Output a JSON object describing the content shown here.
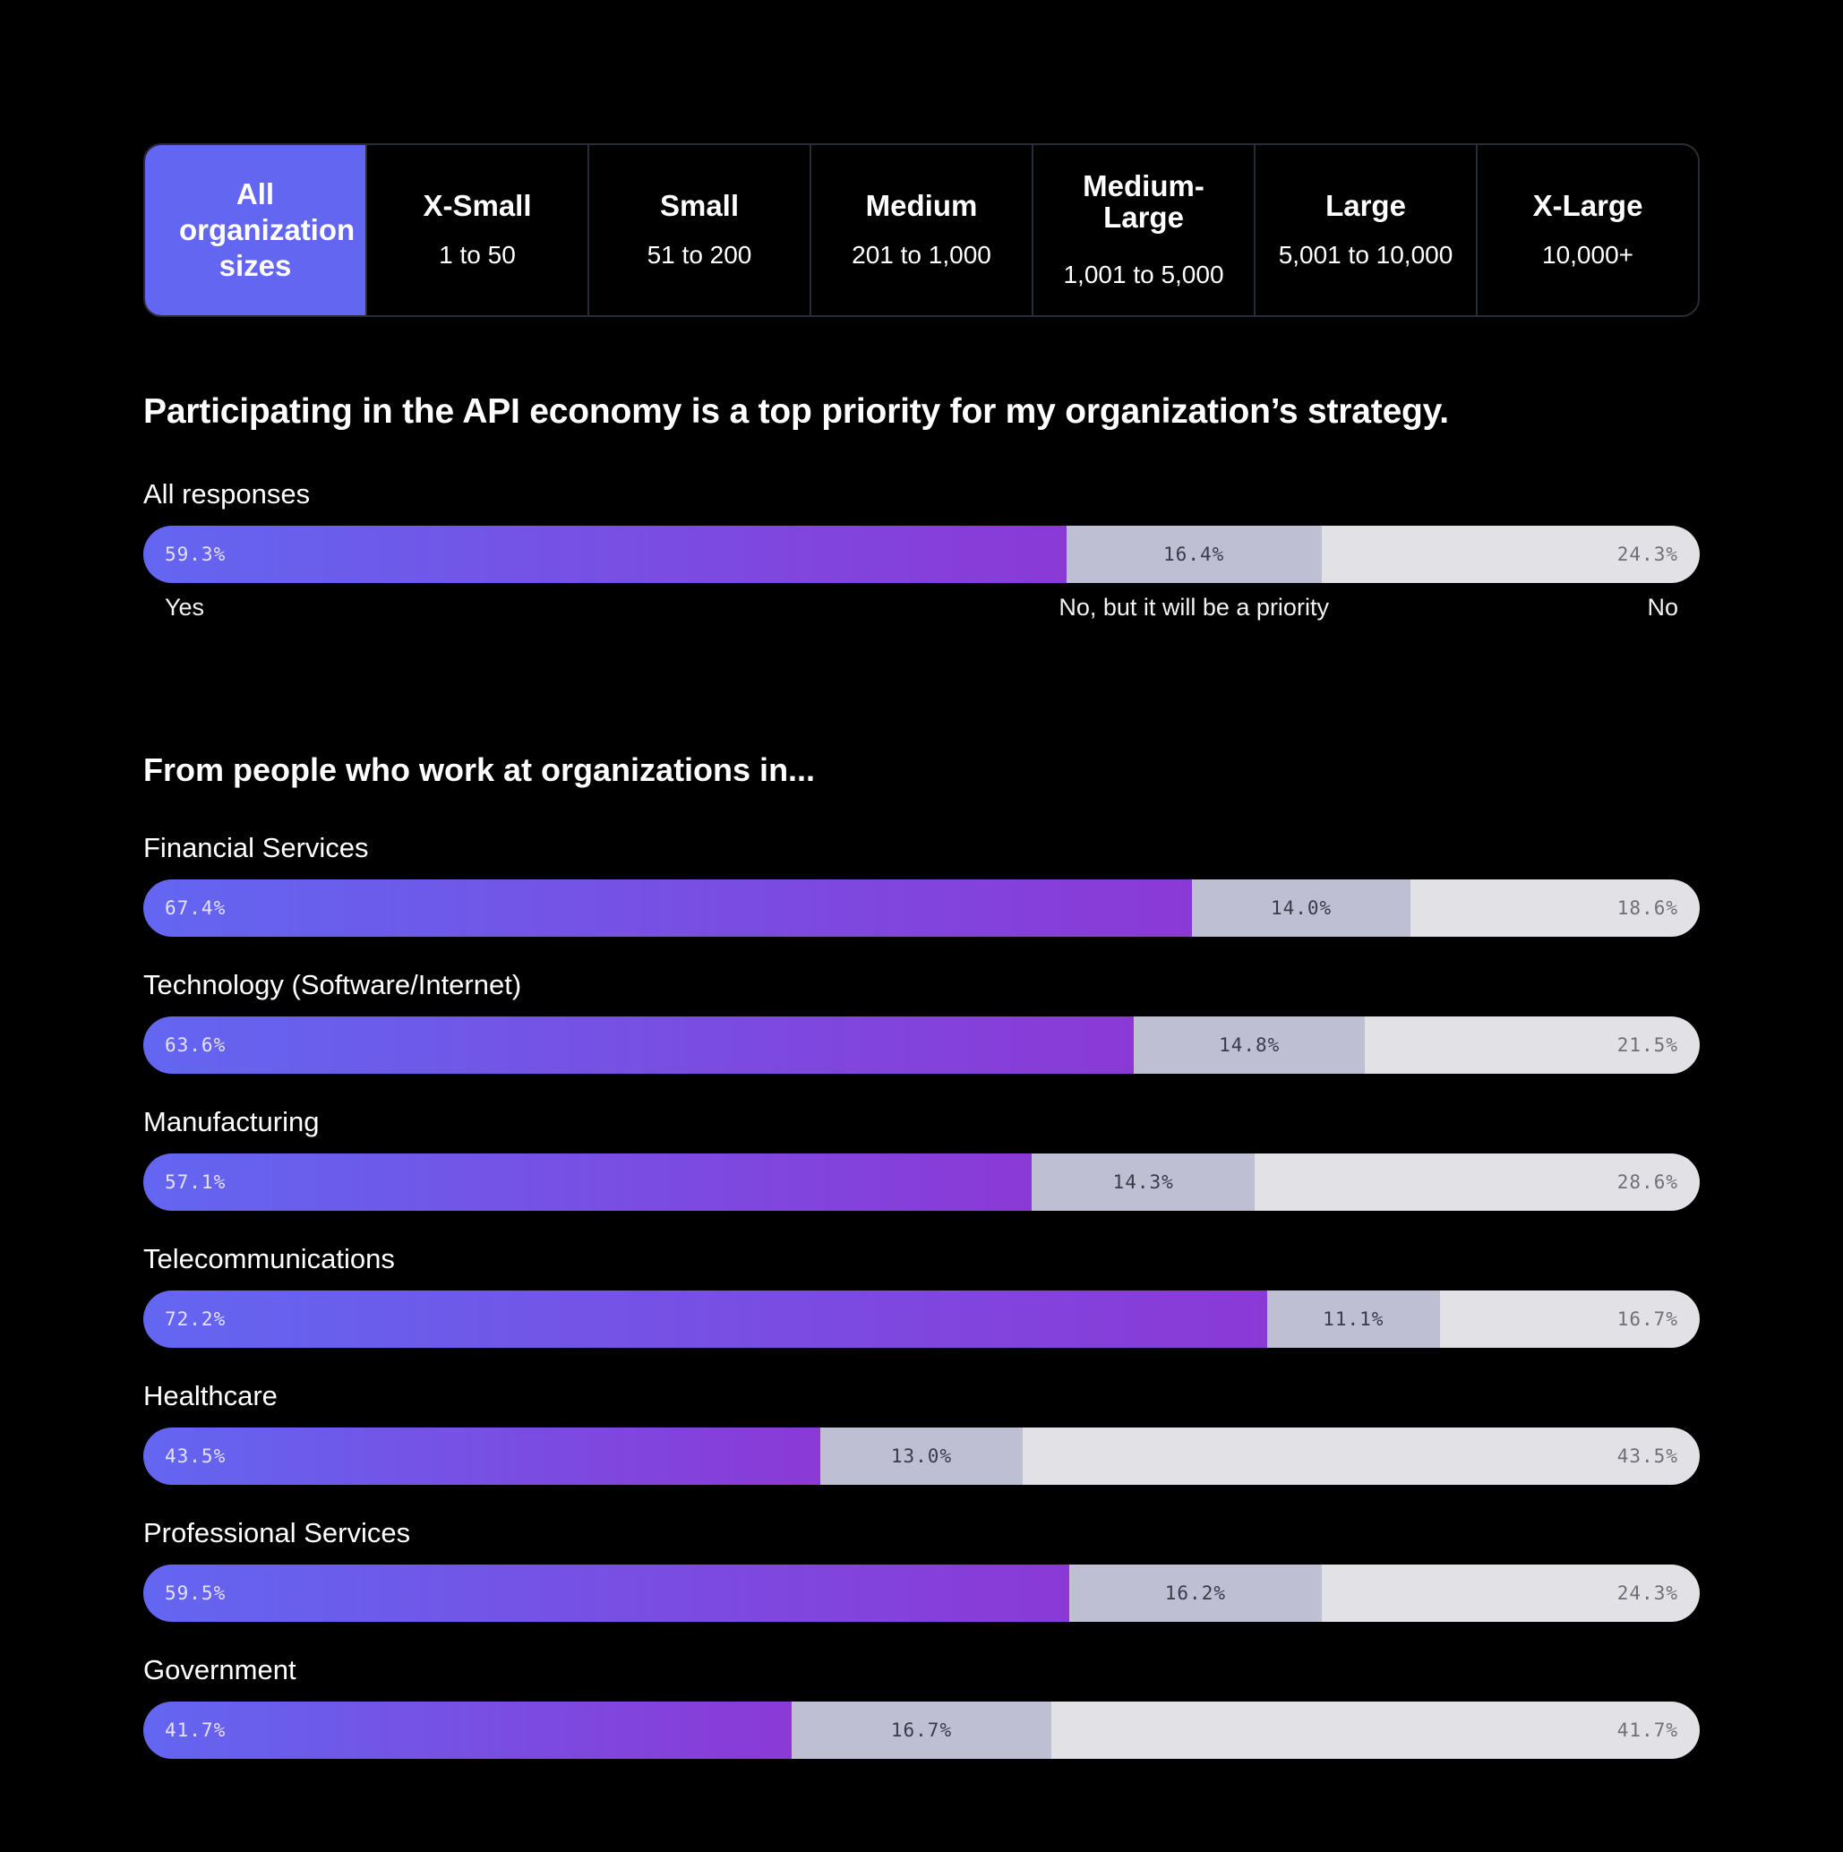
{
  "tabs": [
    {
      "name": "All organization sizes",
      "range": ""
    },
    {
      "name": "X-Small",
      "range": "1 to 50"
    },
    {
      "name": "Small",
      "range": "51 to 200"
    },
    {
      "name": "Medium",
      "range": "201 to 1,000"
    },
    {
      "name": "Medium-Large",
      "range": "1,001 to 5,000"
    },
    {
      "name": "Large",
      "range": "5,001 to 10,000"
    },
    {
      "name": "X-Large",
      "range": "10,000+"
    }
  ],
  "question": "Participating in the API economy is a top priority for my organization’s strategy.",
  "all_responses_label": "All responses",
  "legend": {
    "yes": "Yes",
    "later": "No, but it will be a priority",
    "no": "No"
  },
  "subheading": "From people who work at organizations in...",
  "colors": {
    "yes_start": "#6366f1",
    "yes_end": "#8b39d6",
    "later": "#bfbfd3",
    "no": "#e2e2e6",
    "active_tab": "#6366f1"
  },
  "chart_data": {
    "type": "bar",
    "stacked": true,
    "orientation": "horizontal",
    "title": "Participating in the API economy is a top priority for my organization’s strategy.",
    "categories": [
      "All responses",
      "Financial Services",
      "Technology (Software/Internet)",
      "Manufacturing",
      "Telecommunications",
      "Healthcare",
      "Professional Services",
      "Government"
    ],
    "series": [
      {
        "name": "Yes",
        "values": [
          59.3,
          67.4,
          63.6,
          57.1,
          72.2,
          43.5,
          59.5,
          41.7
        ]
      },
      {
        "name": "No, but it will be a priority",
        "values": [
          16.4,
          14.0,
          14.8,
          14.3,
          11.1,
          13.0,
          16.2,
          16.7
        ]
      },
      {
        "name": "No",
        "values": [
          24.3,
          18.6,
          21.5,
          28.6,
          16.7,
          43.5,
          24.3,
          41.7
        ]
      }
    ],
    "unit": "%"
  }
}
